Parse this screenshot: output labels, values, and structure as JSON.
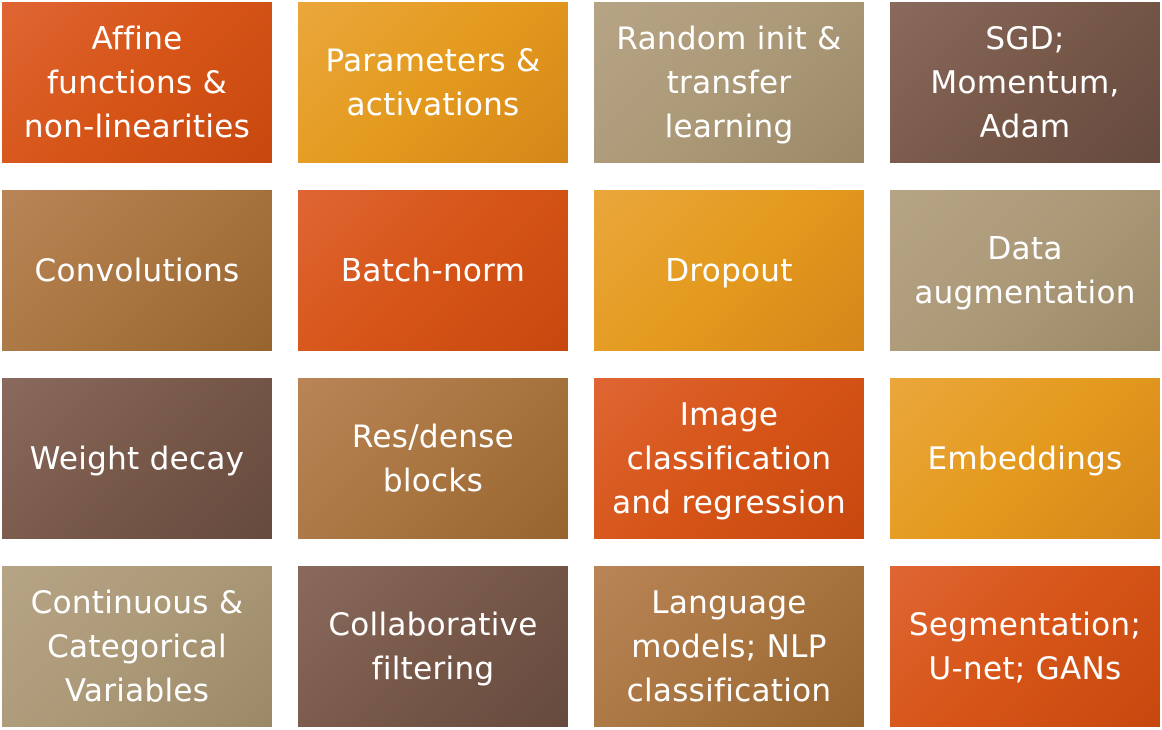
{
  "tiles": [
    {
      "name": "tile-affine-functions",
      "color": "orange",
      "lines": [
        "Affine",
        "functions &",
        "non-linearities"
      ]
    },
    {
      "name": "tile-parameters-activations",
      "color": "gold",
      "lines": [
        "Parameters &",
        "activations"
      ]
    },
    {
      "name": "tile-random-init-transfer",
      "color": "tan",
      "lines": [
        "Random init &",
        "transfer",
        "learning"
      ]
    },
    {
      "name": "tile-sgd-momentum-adam",
      "color": "brown",
      "lines": [
        "SGD;",
        "Momentum,",
        "Adam"
      ]
    },
    {
      "name": "tile-convolutions",
      "color": "camel",
      "lines": [
        "Convolutions"
      ]
    },
    {
      "name": "tile-batch-norm",
      "color": "orange",
      "lines": [
        "Batch-norm"
      ]
    },
    {
      "name": "tile-dropout",
      "color": "gold",
      "lines": [
        "Dropout"
      ]
    },
    {
      "name": "tile-data-augmentation",
      "color": "tan",
      "lines": [
        "Data",
        "augmentation"
      ]
    },
    {
      "name": "tile-weight-decay",
      "color": "brown",
      "lines": [
        "Weight decay"
      ]
    },
    {
      "name": "tile-res-dense-blocks",
      "color": "camel",
      "lines": [
        "Res/dense",
        "blocks"
      ]
    },
    {
      "name": "tile-image-classification",
      "color": "orange",
      "lines": [
        "Image",
        "classification",
        "and regression"
      ]
    },
    {
      "name": "tile-embeddings",
      "color": "gold",
      "lines": [
        "Embeddings"
      ]
    },
    {
      "name": "tile-continuous-categorical",
      "color": "tan",
      "lines": [
        "Continuous &",
        "Categorical",
        "Variables"
      ]
    },
    {
      "name": "tile-collaborative-filtering",
      "color": "brown",
      "lines": [
        "Collaborative",
        "filtering"
      ]
    },
    {
      "name": "tile-language-models",
      "color": "camel",
      "lines": [
        "Language",
        "models; NLP",
        "classification"
      ]
    },
    {
      "name": "tile-segmentation-unet-gans",
      "color": "orange",
      "lines": [
        "Segmentation;",
        "U-net; GANs"
      ]
    }
  ]
}
